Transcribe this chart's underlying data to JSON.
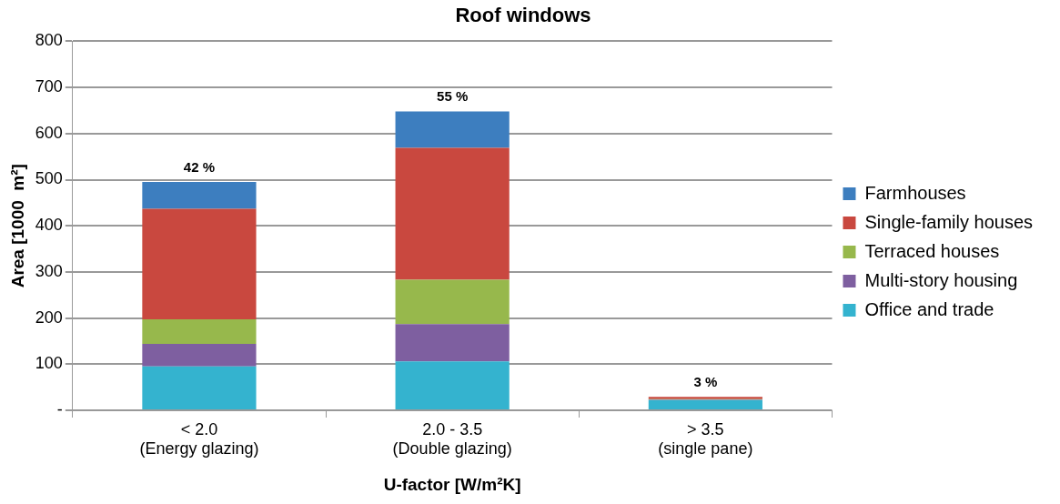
{
  "chart_data": {
    "type": "bar",
    "stacked": true,
    "title": "Roof windows",
    "xlabel": "U-factor [W/m²K]",
    "ylabel": "Area [1000  m²]",
    "categories": [
      "< 2.0\n(Energy glazing)",
      "2.0 - 3.5\n(Double glazing)",
      "> 3.5\n(single pane)"
    ],
    "series": [
      {
        "name": "Office and trade",
        "color": "#34b3cf",
        "values": [
          95,
          106,
          22
        ]
      },
      {
        "name": "Multi-story housing",
        "color": "#7e5fa0",
        "values": [
          49,
          81,
          1
        ]
      },
      {
        "name": "Terraced houses",
        "color": "#97b84c",
        "values": [
          53,
          96,
          1
        ]
      },
      {
        "name": "Single-family houses",
        "color": "#c9483f",
        "values": [
          240,
          286,
          5
        ]
      },
      {
        "name": "Farmhouses",
        "color": "#3d7ebf",
        "values": [
          58,
          79,
          0
        ]
      }
    ],
    "annotations": [
      "42 %",
      "55 %",
      "3 %"
    ],
    "ylim": [
      0,
      800
    ],
    "yticks": [
      {
        "value": 0,
        "label": "-"
      },
      100,
      200,
      300,
      400,
      500,
      600,
      700,
      800
    ],
    "grid": "y",
    "legend": "right"
  }
}
